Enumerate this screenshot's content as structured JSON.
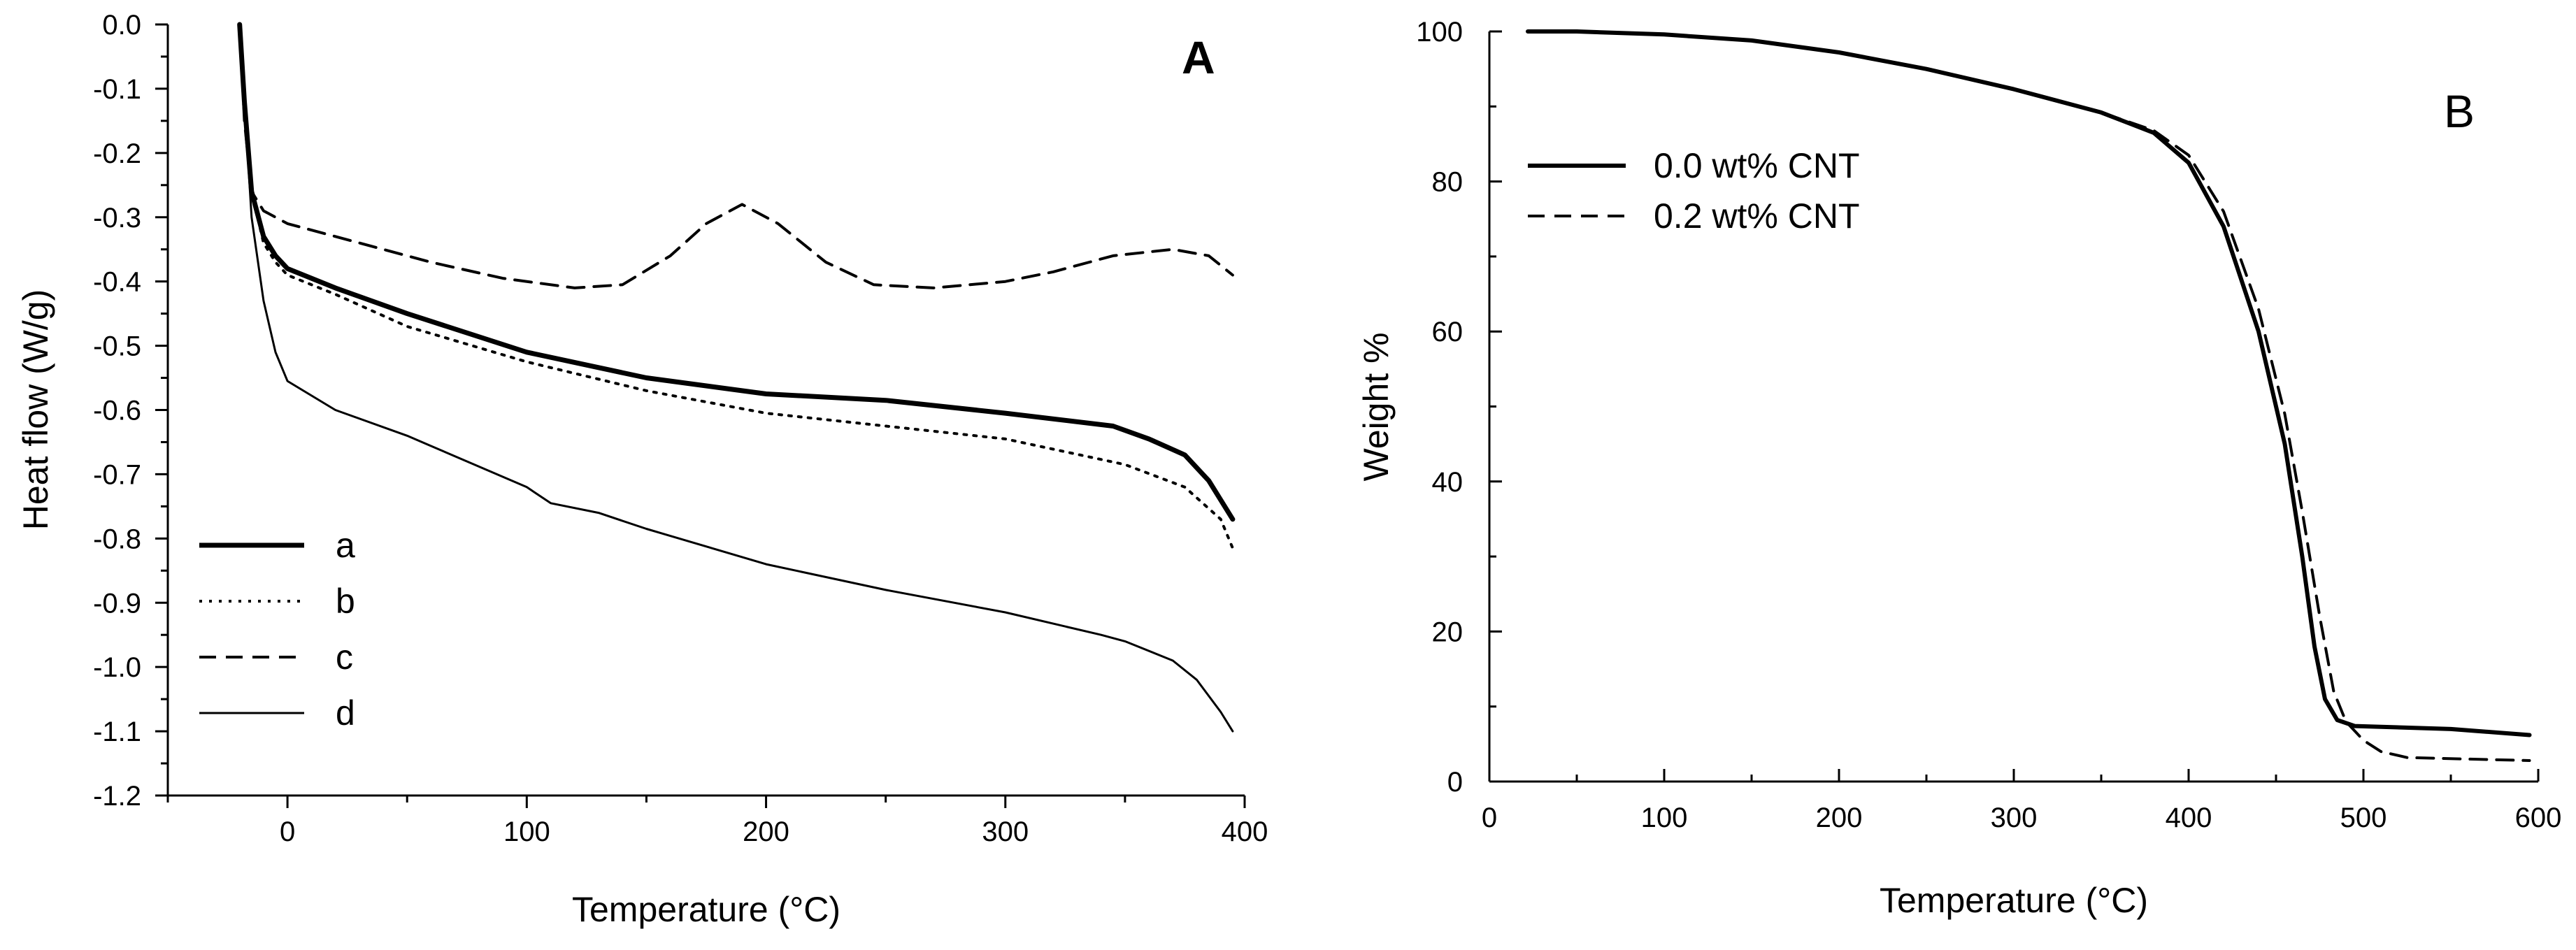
{
  "chart_data": [
    {
      "type": "line",
      "panel_label": "A",
      "xlabel": "Temperature (°C)",
      "ylabel": "Heat flow (W/g)",
      "xlim": [
        -50,
        400
      ],
      "ylim": [
        -1.2,
        0.0
      ],
      "x_ticks": [
        0,
        100,
        200,
        300,
        400
      ],
      "x_tick_labels": [
        "0",
        "100",
        "200",
        "300",
        "400"
      ],
      "y_ticks": [
        0.0,
        -0.1,
        -0.2,
        -0.3,
        -0.4,
        -0.5,
        -0.6,
        -0.7,
        -0.8,
        -0.9,
        -1.0,
        -1.1,
        -1.2
      ],
      "y_tick_labels": [
        "0.0",
        "-0.1",
        "-0.2",
        "-0.3",
        "-0.4",
        "-0.5",
        "-0.6",
        "-0.7",
        "-0.8",
        "-0.9",
        "-1.0",
        "-1.1",
        "-1.2"
      ],
      "legend_position": "bottom-left",
      "series": [
        {
          "name": "a",
          "style": "thick-solid",
          "points": [
            [
              -20,
              0.0
            ],
            [
              -18,
              -0.12
            ],
            [
              -15,
              -0.26
            ],
            [
              -10,
              -0.33
            ],
            [
              -5,
              -0.36
            ],
            [
              0,
              -0.38
            ],
            [
              20,
              -0.41
            ],
            [
              50,
              -0.45
            ],
            [
              100,
              -0.51
            ],
            [
              150,
              -0.55
            ],
            [
              200,
              -0.575
            ],
            [
              250,
              -0.585
            ],
            [
              300,
              -0.605
            ],
            [
              345,
              -0.625
            ],
            [
              360,
              -0.645
            ],
            [
              375,
              -0.67
            ],
            [
              385,
              -0.71
            ],
            [
              395,
              -0.77
            ]
          ]
        },
        {
          "name": "b",
          "style": "dotted",
          "points": [
            [
              -20,
              0.0
            ],
            [
              -18,
              -0.12
            ],
            [
              -15,
              -0.26
            ],
            [
              -10,
              -0.34
            ],
            [
              -5,
              -0.37
            ],
            [
              0,
              -0.39
            ],
            [
              20,
              -0.42
            ],
            [
              50,
              -0.47
            ],
            [
              100,
              -0.525
            ],
            [
              150,
              -0.57
            ],
            [
              200,
              -0.605
            ],
            [
              250,
              -0.625
            ],
            [
              300,
              -0.645
            ],
            [
              350,
              -0.685
            ],
            [
              375,
              -0.72
            ],
            [
              390,
              -0.77
            ],
            [
              395,
              -0.815
            ]
          ]
        },
        {
          "name": "c",
          "style": "dashed",
          "points": [
            [
              -20,
              0.0
            ],
            [
              -18,
              -0.15
            ],
            [
              -15,
              -0.26
            ],
            [
              -10,
              -0.29
            ],
            [
              0,
              -0.31
            ],
            [
              30,
              -0.34
            ],
            [
              60,
              -0.37
            ],
            [
              90,
              -0.395
            ],
            [
              120,
              -0.41
            ],
            [
              140,
              -0.405
            ],
            [
              160,
              -0.36
            ],
            [
              175,
              -0.31
            ],
            [
              190,
              -0.28
            ],
            [
              205,
              -0.31
            ],
            [
              225,
              -0.37
            ],
            [
              245,
              -0.405
            ],
            [
              270,
              -0.41
            ],
            [
              300,
              -0.4
            ],
            [
              320,
              -0.385
            ],
            [
              345,
              -0.36
            ],
            [
              370,
              -0.35
            ],
            [
              385,
              -0.36
            ],
            [
              395,
              -0.39
            ]
          ]
        },
        {
          "name": "d",
          "style": "thin-solid",
          "points": [
            [
              -20,
              0.0
            ],
            [
              -18,
              -0.12
            ],
            [
              -15,
              -0.3
            ],
            [
              -10,
              -0.43
            ],
            [
              -5,
              -0.51
            ],
            [
              0,
              -0.555
            ],
            [
              20,
              -0.6
            ],
            [
              50,
              -0.64
            ],
            [
              100,
              -0.72
            ],
            [
              110,
              -0.745
            ],
            [
              130,
              -0.76
            ],
            [
              150,
              -0.785
            ],
            [
              200,
              -0.84
            ],
            [
              250,
              -0.88
            ],
            [
              300,
              -0.915
            ],
            [
              340,
              -0.95
            ],
            [
              350,
              -0.96
            ],
            [
              370,
              -0.99
            ],
            [
              380,
              -1.02
            ],
            [
              390,
              -1.07
            ],
            [
              395,
              -1.1
            ]
          ]
        }
      ]
    },
    {
      "type": "line",
      "panel_label": "B",
      "xlabel": "Temperature (°C)",
      "ylabel": "Weight %",
      "xlim": [
        0,
        600
      ],
      "ylim": [
        0,
        100
      ],
      "x_ticks": [
        0,
        100,
        200,
        300,
        400,
        500,
        600
      ],
      "x_tick_labels": [
        "0",
        "100",
        "200",
        "300",
        "400",
        "500",
        "600"
      ],
      "y_ticks": [
        0,
        20,
        40,
        60,
        80,
        100
      ],
      "y_tick_labels": [
        "0",
        "20",
        "40",
        "60",
        "80",
        "100"
      ],
      "legend_position": "top-left",
      "series": [
        {
          "name": "0.0 wt% CNT",
          "style": "solid",
          "points": [
            [
              22,
              100
            ],
            [
              50,
              100
            ],
            [
              100,
              99.6
            ],
            [
              150,
              98.8
            ],
            [
              200,
              97.2
            ],
            [
              250,
              95
            ],
            [
              300,
              92.3
            ],
            [
              350,
              89.2
            ],
            [
              380,
              86.5
            ],
            [
              400,
              82.5
            ],
            [
              420,
              74
            ],
            [
              440,
              60
            ],
            [
              455,
              45
            ],
            [
              465,
              30
            ],
            [
              472,
              18
            ],
            [
              478,
              11
            ],
            [
              485,
              8.2
            ],
            [
              495,
              7.4
            ],
            [
              550,
              7.0
            ],
            [
              595,
              6.2
            ]
          ]
        },
        {
          "name": "0.2 wt% CNT",
          "style": "dashed",
          "points": [
            [
              22,
              100
            ],
            [
              50,
              100
            ],
            [
              100,
              99.6
            ],
            [
              150,
              98.8
            ],
            [
              200,
              97.2
            ],
            [
              250,
              95
            ],
            [
              300,
              92.3
            ],
            [
              350,
              89.2
            ],
            [
              380,
              86.8
            ],
            [
              400,
              83.5
            ],
            [
              420,
              76
            ],
            [
              440,
              63
            ],
            [
              455,
              49
            ],
            [
              465,
              36
            ],
            [
              475,
              22
            ],
            [
              483,
              12
            ],
            [
              490,
              8
            ],
            [
              500,
              5.5
            ],
            [
              510,
              4
            ],
            [
              525,
              3.2
            ],
            [
              595,
              2.8
            ]
          ]
        }
      ]
    }
  ]
}
